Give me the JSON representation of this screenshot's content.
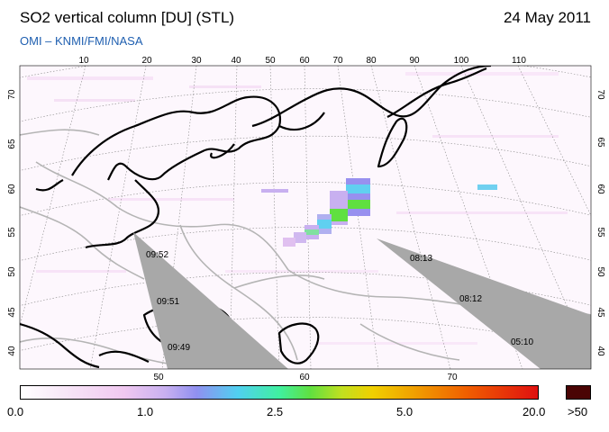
{
  "header": {
    "title": "SO2 vertical column [DU] (STL)",
    "date": "24 May 2011",
    "subtitle": "OMI  –  KNMI/FMI/NASA"
  },
  "map": {
    "top_lon_labels": [
      "10",
      "20",
      "30",
      "40",
      "50",
      "60",
      "70",
      "80",
      "90",
      "100",
      "110"
    ],
    "bottom_lon_labels": [
      "50",
      "60",
      "70"
    ],
    "left_lat_labels": [
      "70",
      "65",
      "60",
      "55",
      "50",
      "45",
      "40"
    ],
    "right_lat_labels": [
      "70",
      "65",
      "60",
      "55",
      "50",
      "45",
      "40"
    ],
    "orbit_times": [
      "09:52",
      "09:51",
      "09:49",
      "08:13",
      "08:12",
      "05:10"
    ],
    "colors": {
      "land_outline": "#000000",
      "borders": "#b4b4b4",
      "no_data_swath": "#a8a8a8",
      "grid": "#888888"
    }
  },
  "colorbar": {
    "labels": [
      "0.0",
      "1.0",
      "2.5",
      "5.0",
      "20.0"
    ],
    "overflow_label": ">50",
    "overflow_color": "#4a0404"
  }
}
